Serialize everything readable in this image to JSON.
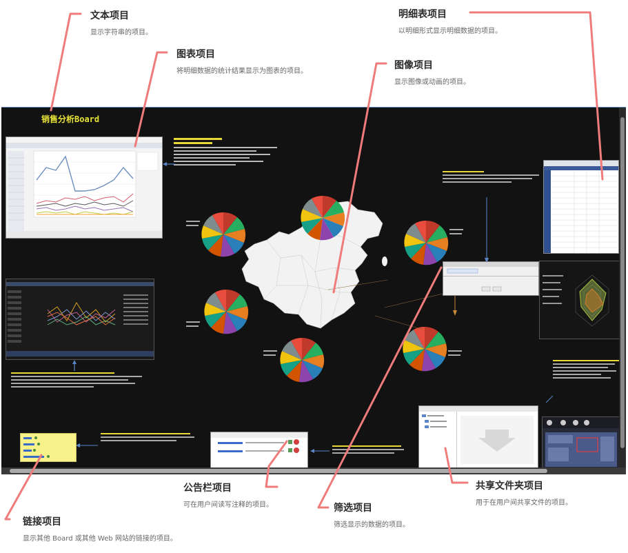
{
  "board": {
    "title": "销售分析Board"
  },
  "callouts": {
    "text_item": {
      "title": "文本项目",
      "desc": "显示字符串的项目。"
    },
    "chart_item": {
      "title": "图表项目",
      "desc": "将明细数据的统计结果显示为图表的项目。"
    },
    "image_item": {
      "title": "图像项目",
      "desc": "显示图像或动画的项目。"
    },
    "detail_item": {
      "title": "明细表项目",
      "desc": "以明细形式显示明细数据的项目。"
    },
    "bulletin_item": {
      "title": "公告栏项目",
      "desc": "可在用户间读写注释的项目。"
    },
    "filter_item": {
      "title": "筛选项目",
      "desc": "筛选显示的数据的项目。"
    },
    "shared_folder_item": {
      "title": "共享文件夹项目",
      "desc": "用于在用户间共享文件的项目。"
    },
    "link_item": {
      "title": "链接项目",
      "desc": "显示其他 Board 或其他 Web 网站的链接的项目。"
    }
  },
  "colors": {
    "leader": "#ef7b7b",
    "board_bg": "#121212",
    "board_title": "#e8e436",
    "flow_arrow": "#5b86c8",
    "link_panel": "#f7f28a"
  }
}
